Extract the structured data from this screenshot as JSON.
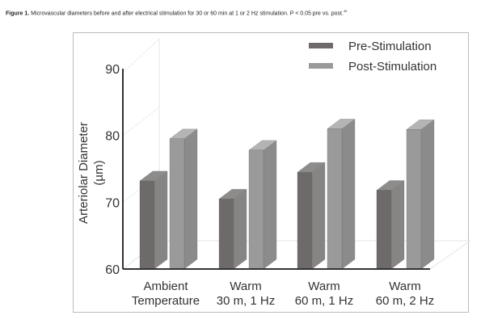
{
  "caption": {
    "label": "Figure 1.",
    "text": "Microvascular diameters before and after electrical stimulation for 30 or 60 min at 1 or 2 Hz stimulation. P < 0.05 pre vs. post.",
    "ref": "49"
  },
  "chart_data": {
    "type": "bar",
    "title": "",
    "xlabel": "",
    "ylabel": "Arteriolar Diameter (µm)",
    "ylabel_lines": [
      "Arteriolar Diameter",
      "(µm)"
    ],
    "ylim": [
      60,
      90
    ],
    "yticks": [
      "60",
      "70",
      "80",
      "90"
    ],
    "categories": [
      [
        "Ambient",
        "Temperature"
      ],
      [
        "Warm",
        "30 m, 1 Hz"
      ],
      [
        "Warm",
        "60 m, 1 Hz"
      ],
      [
        "Warm",
        "60 m, 2 Hz"
      ]
    ],
    "series": [
      {
        "name": "Pre-Stimulation",
        "values": [
          73.2,
          70.5,
          74.5,
          71.8
        ],
        "colors": {
          "front": "#6e6a6a",
          "side": "#878484",
          "top": "#8e8b8b"
        }
      },
      {
        "name": "Post-Stimulation",
        "values": [
          79.5,
          77.8,
          81.0,
          80.9
        ],
        "colors": {
          "front": "#9a9a9a",
          "side": "#8b8b8b",
          "top": "#b4b4b4"
        }
      }
    ],
    "legend_position": "top-right",
    "style": "3d"
  }
}
